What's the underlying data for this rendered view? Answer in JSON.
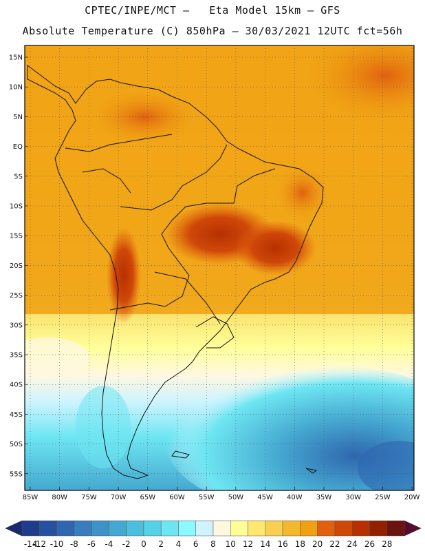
{
  "header": {
    "line1": "CPTEC/INPE/MCT –   Eta Model 15km – GFS",
    "line2": "Absolute Temperature (C) 850hPa – 30/03/2021 12UTC fct=56h"
  },
  "map": {
    "lat_labels": [
      "15N",
      "10N",
      "5N",
      "EQ",
      "5S",
      "10S",
      "15S",
      "20S",
      "25S",
      "30S",
      "35S",
      "40S",
      "45S",
      "50S",
      "55S"
    ],
    "lon_labels": [
      "85W",
      "80W",
      "75W",
      "70W",
      "65W",
      "60W",
      "55W",
      "50W",
      "45W",
      "40W",
      "35W",
      "30W",
      "25W",
      "20W"
    ],
    "grid": "dotted",
    "region": "South America"
  },
  "colorbar": {
    "labels": [
      "-14",
      "-12",
      "-10",
      "-8",
      "-6",
      "-4",
      "-2",
      "0",
      "2",
      "4",
      "6",
      "8",
      "10",
      "12",
      "14",
      "16",
      "18",
      "20",
      "22",
      "24",
      "26",
      "28"
    ],
    "colors": [
      "#1e3c8c",
      "#2750a0",
      "#2f66b0",
      "#3a7cc0",
      "#3f92c8",
      "#45a8d0",
      "#4cbede",
      "#55d2e8",
      "#6ee6f2",
      "#8ef8ff",
      "#cff4ff",
      "#fff8e0",
      "#ffff9a",
      "#ffe870",
      "#f7d050",
      "#f4b830",
      "#f0a010",
      "#e06010",
      "#d04808",
      "#b83000",
      "#922000",
      "#6a1410"
    ],
    "low_arrow_color": "#1a2a70",
    "high_arrow_color": "#5a0a30"
  }
}
